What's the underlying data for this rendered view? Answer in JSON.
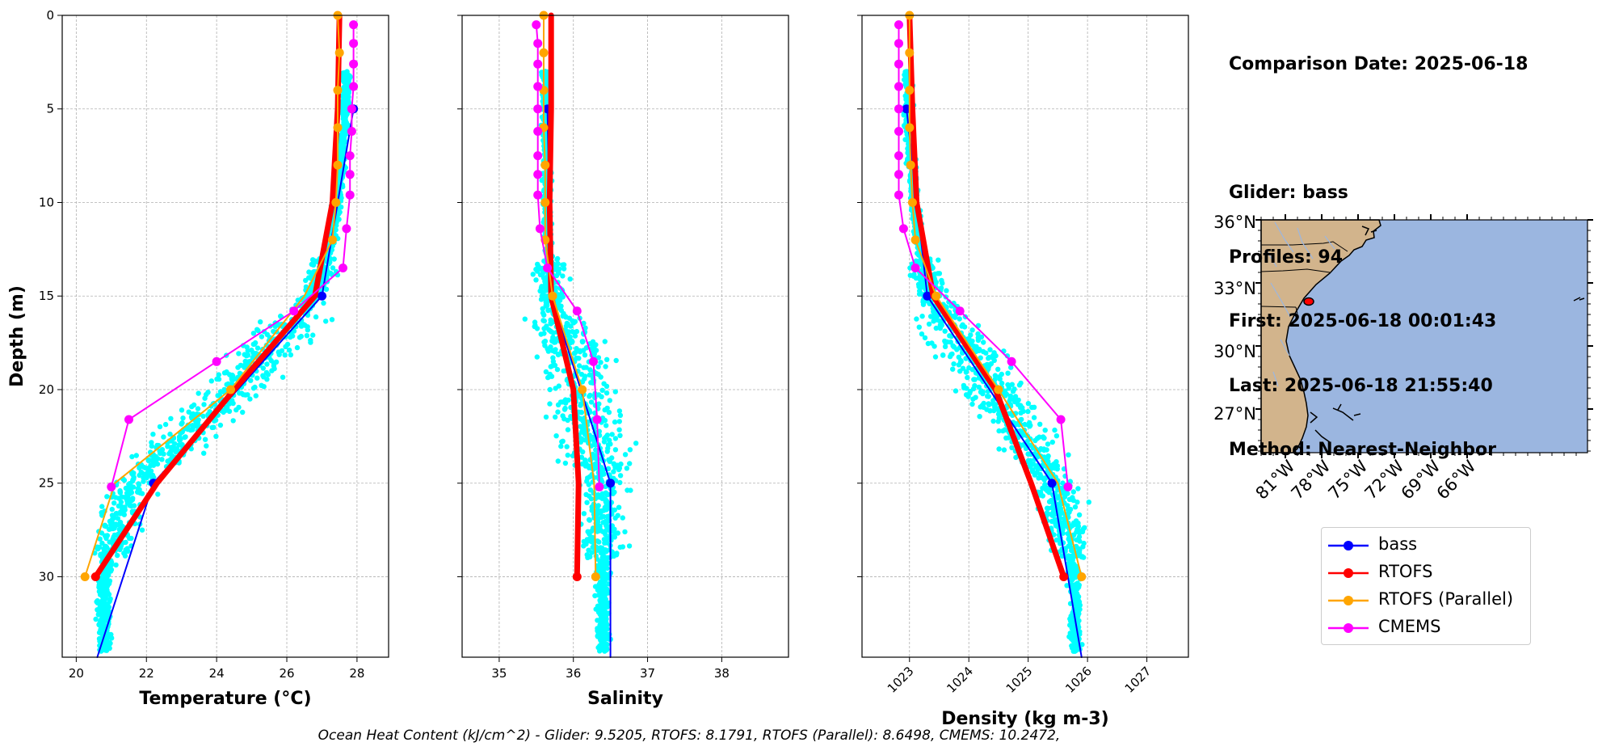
{
  "chart_data": [
    {
      "type": "line",
      "xlabel": "Temperature (°C)",
      "ylabel": "Depth (m)",
      "xlim": [
        19.6,
        28.9
      ],
      "ylim": [
        34.3,
        0
      ],
      "xticks": [
        20,
        22,
        24,
        26,
        28
      ],
      "yticks": [
        0,
        5,
        10,
        15,
        20,
        25,
        30
      ],
      "grid": true,
      "scatter_color": "#00ffff",
      "series": [
        {
          "name": "bass",
          "color": "#0000ff",
          "points": [
            [
              27.9,
              5
            ],
            [
              27.0,
              15
            ],
            [
              22.2,
              25
            ],
            [
              20.6,
              34.3
            ]
          ],
          "markers": [
            [
              27.9,
              5
            ],
            [
              27.0,
              15
            ],
            [
              22.2,
              25
            ]
          ]
        },
        {
          "name": "RTOFS",
          "color": "#ff0000",
          "points": [
            [
              27.5,
              0
            ],
            [
              27.45,
              5
            ],
            [
              27.3,
              10
            ],
            [
              26.8,
              15
            ],
            [
              24.5,
              20
            ],
            [
              22.3,
              25
            ],
            [
              20.55,
              30
            ]
          ],
          "markers": [
            [
              20.55,
              30
            ]
          ]
        },
        {
          "name": "RTOFS (Parallel)",
          "color": "#ffa500",
          "points": [
            [
              27.45,
              0
            ],
            [
              27.5,
              2
            ],
            [
              27.45,
              4
            ],
            [
              27.45,
              6
            ],
            [
              27.45,
              8
            ],
            [
              27.4,
              10
            ],
            [
              27.3,
              12
            ],
            [
              26.5,
              15
            ],
            [
              24.4,
              20
            ],
            [
              21.1,
              25
            ],
            [
              20.25,
              30
            ]
          ],
          "markers": [
            [
              27.45,
              0
            ],
            [
              27.5,
              2
            ],
            [
              27.45,
              4
            ],
            [
              27.45,
              6
            ],
            [
              27.45,
              8
            ],
            [
              27.4,
              10
            ],
            [
              27.3,
              12
            ],
            [
              24.4,
              20
            ],
            [
              20.25,
              30
            ]
          ]
        },
        {
          "name": "CMEMS",
          "color": "#ff00ff",
          "points": [
            [
              27.9,
              0.5
            ],
            [
              27.9,
              1.5
            ],
            [
              27.9,
              2.6
            ],
            [
              27.9,
              3.8
            ],
            [
              27.85,
              5
            ],
            [
              27.85,
              6.2
            ],
            [
              27.8,
              7.5
            ],
            [
              27.8,
              8.5
            ],
            [
              27.8,
              9.6
            ],
            [
              27.7,
              11.4
            ],
            [
              27.6,
              13.5
            ],
            [
              26.2,
              15.8
            ],
            [
              24.0,
              18.5
            ],
            [
              21.5,
              21.6
            ],
            [
              21.0,
              25.2
            ]
          ],
          "markers": [
            [
              27.9,
              0.5
            ],
            [
              27.9,
              1.5
            ],
            [
              27.9,
              2.6
            ],
            [
              27.9,
              3.8
            ],
            [
              27.85,
              5
            ],
            [
              27.85,
              6.2
            ],
            [
              27.8,
              7.5
            ],
            [
              27.8,
              8.5
            ],
            [
              27.8,
              9.6
            ],
            [
              27.7,
              11.4
            ],
            [
              27.6,
              13.5
            ],
            [
              26.2,
              15.8
            ],
            [
              24.0,
              18.5
            ],
            [
              21.5,
              21.6
            ],
            [
              21.0,
              25.2
            ]
          ]
        }
      ]
    },
    {
      "type": "line",
      "xlabel": "Salinity",
      "xlim": [
        34.5,
        38.9
      ],
      "ylim": [
        34.3,
        0
      ],
      "xticks": [
        35,
        36,
        37,
        38
      ],
      "yticks": [
        0,
        5,
        10,
        15,
        20,
        25,
        30
      ],
      "grid": true,
      "scatter_color": "#00ffff",
      "series": [
        {
          "name": "bass",
          "color": "#0000ff",
          "points": [
            [
              35.65,
              5
            ],
            [
              35.7,
              15
            ],
            [
              36.1,
              20
            ],
            [
              36.5,
              25
            ],
            [
              36.5,
              34.3
            ]
          ],
          "markers": [
            [
              35.65,
              5
            ],
            [
              36.5,
              25
            ]
          ]
        },
        {
          "name": "RTOFS",
          "color": "#ff0000",
          "points": [
            [
              35.7,
              0
            ],
            [
              35.7,
              5
            ],
            [
              35.68,
              10
            ],
            [
              35.7,
              15
            ],
            [
              36.0,
              20
            ],
            [
              36.07,
              25
            ],
            [
              36.05,
              30
            ]
          ],
          "markers": [
            [
              36.05,
              30
            ]
          ]
        },
        {
          "name": "RTOFS (Parallel)",
          "color": "#ffa500",
          "points": [
            [
              35.6,
              0
            ],
            [
              35.6,
              2
            ],
            [
              35.6,
              4
            ],
            [
              35.6,
              6
            ],
            [
              35.62,
              8
            ],
            [
              35.62,
              10
            ],
            [
              35.62,
              12
            ],
            [
              35.72,
              15
            ],
            [
              36.12,
              20
            ],
            [
              36.28,
              25
            ],
            [
              36.3,
              30
            ]
          ],
          "markers": [
            [
              35.6,
              0
            ],
            [
              35.6,
              2
            ],
            [
              35.6,
              4
            ],
            [
              35.6,
              6
            ],
            [
              35.62,
              8
            ],
            [
              35.62,
              10
            ],
            [
              35.62,
              12
            ],
            [
              35.72,
              15
            ],
            [
              36.12,
              20
            ],
            [
              36.3,
              30
            ]
          ]
        },
        {
          "name": "CMEMS",
          "color": "#ff00ff",
          "points": [
            [
              35.5,
              0.5
            ],
            [
              35.52,
              1.5
            ],
            [
              35.52,
              2.6
            ],
            [
              35.52,
              3.8
            ],
            [
              35.52,
              5
            ],
            [
              35.52,
              6.2
            ],
            [
              35.52,
              7.5
            ],
            [
              35.52,
              8.5
            ],
            [
              35.52,
              9.6
            ],
            [
              35.55,
              11.4
            ],
            [
              35.65,
              13.5
            ],
            [
              36.05,
              15.8
            ],
            [
              36.27,
              18.5
            ],
            [
              36.32,
              21.6
            ],
            [
              36.35,
              25.2
            ]
          ],
          "markers": [
            [
              35.5,
              0.5
            ],
            [
              35.52,
              1.5
            ],
            [
              35.52,
              2.6
            ],
            [
              35.52,
              3.8
            ],
            [
              35.52,
              5
            ],
            [
              35.52,
              6.2
            ],
            [
              35.52,
              7.5
            ],
            [
              35.52,
              8.5
            ],
            [
              35.52,
              9.6
            ],
            [
              35.55,
              11.4
            ],
            [
              35.65,
              13.5
            ],
            [
              36.05,
              15.8
            ],
            [
              36.27,
              18.5
            ],
            [
              36.32,
              21.6
            ],
            [
              36.35,
              25.2
            ]
          ]
        }
      ]
    },
    {
      "type": "line",
      "xlabel": "Density (kg m-3)",
      "xlim": [
        1022.2,
        1027.7
      ],
      "ylim": [
        34.3,
        0
      ],
      "xticks": [
        1023,
        1024,
        1025,
        1026,
        1027
      ],
      "yticks": [
        0,
        5,
        10,
        15,
        20,
        25,
        30
      ],
      "grid": true,
      "scatter_color": "#00ffff",
      "series": [
        {
          "name": "bass",
          "color": "#0000ff",
          "points": [
            [
              1022.95,
              5
            ],
            [
              1023.3,
              15
            ],
            [
              1024.35,
              20
            ],
            [
              1025.4,
              25
            ],
            [
              1025.9,
              34.3
            ]
          ],
          "markers": [
            [
              1022.95,
              5
            ],
            [
              1023.3,
              15
            ],
            [
              1025.4,
              25
            ]
          ]
        },
        {
          "name": "RTOFS",
          "color": "#ff0000",
          "points": [
            [
              1023.0,
              0
            ],
            [
              1023.05,
              5
            ],
            [
              1023.12,
              10
            ],
            [
              1023.4,
              15
            ],
            [
              1024.45,
              20
            ],
            [
              1025.05,
              25
            ],
            [
              1025.6,
              30
            ]
          ],
          "markers": [
            [
              1025.6,
              30
            ]
          ]
        },
        {
          "name": "RTOFS (Parallel)",
          "color": "#ffa500",
          "points": [
            [
              1023.0,
              0
            ],
            [
              1023.0,
              2
            ],
            [
              1023.0,
              4
            ],
            [
              1023.0,
              6
            ],
            [
              1023.02,
              8
            ],
            [
              1023.05,
              10
            ],
            [
              1023.1,
              12
            ],
            [
              1023.45,
              15
            ],
            [
              1024.5,
              20
            ],
            [
              1025.5,
              25
            ],
            [
              1025.9,
              30
            ]
          ],
          "markers": [
            [
              1023.0,
              0
            ],
            [
              1023.0,
              2
            ],
            [
              1023.0,
              4
            ],
            [
              1023.0,
              6
            ],
            [
              1023.02,
              8
            ],
            [
              1023.05,
              10
            ],
            [
              1023.1,
              12
            ],
            [
              1023.45,
              15
            ],
            [
              1024.5,
              20
            ],
            [
              1025.9,
              30
            ]
          ]
        },
        {
          "name": "CMEMS",
          "color": "#ff00ff",
          "points": [
            [
              1022.82,
              0.5
            ],
            [
              1022.82,
              1.5
            ],
            [
              1022.82,
              2.6
            ],
            [
              1022.82,
              3.8
            ],
            [
              1022.82,
              5
            ],
            [
              1022.82,
              6.2
            ],
            [
              1022.82,
              7.5
            ],
            [
              1022.82,
              8.5
            ],
            [
              1022.82,
              9.6
            ],
            [
              1022.9,
              11.4
            ],
            [
              1023.1,
              13.5
            ],
            [
              1023.85,
              15.8
            ],
            [
              1024.72,
              18.5
            ],
            [
              1025.55,
              21.6
            ],
            [
              1025.67,
              25.2
            ]
          ],
          "markers": [
            [
              1022.82,
              0.5
            ],
            [
              1022.82,
              1.5
            ],
            [
              1022.82,
              2.6
            ],
            [
              1022.82,
              3.8
            ],
            [
              1022.82,
              5
            ],
            [
              1022.82,
              6.2
            ],
            [
              1022.82,
              7.5
            ],
            [
              1022.82,
              8.5
            ],
            [
              1022.82,
              9.6
            ],
            [
              1022.9,
              11.4
            ],
            [
              1023.1,
              13.5
            ],
            [
              1023.85,
              15.8
            ],
            [
              1024.72,
              18.5
            ],
            [
              1025.55,
              21.6
            ],
            [
              1025.67,
              25.2
            ]
          ]
        }
      ]
    }
  ],
  "map": {
    "lat_labels": [
      "36°N",
      "33°N",
      "30°N",
      "27°N"
    ],
    "lon_labels": [
      "81°W",
      "78°W",
      "75°W",
      "72°W",
      "69°W",
      "66°W"
    ],
    "land_color": "#d2b48c",
    "ocean_color": "#9bb6e0",
    "glider_position": "32.3°N 79.6°W"
  },
  "info": {
    "comparison_date": "Comparison Date: 2025-06-18",
    "glider": "Glider: bass",
    "profiles": "Profiles: 94",
    "first": "First: 2025-06-18 00:01:43",
    "last": "Last: 2025-06-18 21:55:40",
    "method": "Method: Nearest-Neighbor"
  },
  "legend": [
    {
      "label": "bass",
      "color": "#0000ff"
    },
    {
      "label": "RTOFS",
      "color": "#ff0000"
    },
    {
      "label": "RTOFS (Parallel)",
      "color": "#ffa500"
    },
    {
      "label": "CMEMS",
      "color": "#ff00ff"
    }
  ],
  "caption": "Ocean Heat Content (kJ/cm^2) - Glider: 9.5205,  RTOFS: 8.1791,  RTOFS (Parallel): 8.6498,  CMEMS: 10.2472,"
}
